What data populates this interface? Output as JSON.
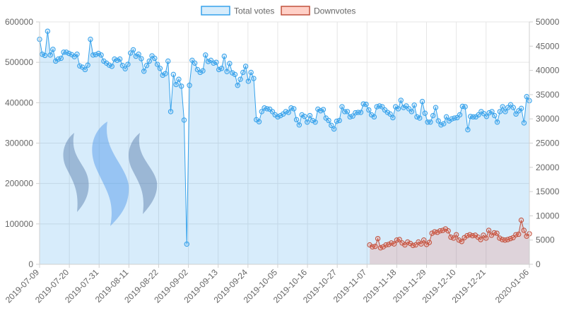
{
  "chart_data": {
    "type": "line",
    "legend_position": "top-center",
    "grid": true,
    "colors": {
      "total_line": "#36a2eb",
      "total_fill": "rgba(54,162,235,0.2)",
      "down_line": "#c0503c",
      "down_fill": "rgba(255,99,71,0.18)",
      "grid": "#e6e6e6",
      "logo_dark": "#5a6e99",
      "logo_light": "#4f95ea"
    },
    "logo_icon": "steem-logo-icon",
    "x_start": "2019-07-09",
    "x_end": "2020-01-06",
    "xticks": [
      "2019-07-09",
      "2019-07-20",
      "2019-07-31",
      "2019-08-11",
      "2019-08-22",
      "2019-09-02",
      "2019-09-13",
      "2019-09-24",
      "2019-10-05",
      "2019-10-16",
      "2019-10-27",
      "2019-11-07",
      "2019-11-18",
      "2019-11-29",
      "2019-12-10",
      "2019-12-21",
      "2020-01-06"
    ],
    "y_left": {
      "min": 0,
      "max": 600000,
      "ticks": [
        "0",
        "100000",
        "200000",
        "300000",
        "400000",
        "500000",
        "600000"
      ]
    },
    "y_right": {
      "min": 0,
      "max": 50000,
      "ticks": [
        "0",
        "5000",
        "10000",
        "15000",
        "20000",
        "25000",
        "30000",
        "35000",
        "40000",
        "45000",
        "50000"
      ]
    },
    "series": [
      {
        "name": "Total votes",
        "axis": "left",
        "start": "2019-07-09",
        "values": [
          557000,
          520000,
          517000,
          577000,
          518000,
          532000,
          503000,
          508000,
          510000,
          525000,
          525000,
          522000,
          519000,
          514000,
          520000,
          491000,
          488000,
          482000,
          493000,
          557000,
          518000,
          519000,
          522000,
          518000,
          503000,
          498000,
          493000,
          490000,
          508000,
          505000,
          508000,
          492000,
          484000,
          495000,
          523000,
          531000,
          515000,
          520000,
          509000,
          478000,
          492000,
          503000,
          516000,
          510000,
          495000,
          485000,
          468000,
          472000,
          503000,
          378000,
          470000,
          445000,
          458000,
          441000,
          357000,
          50000,
          443000,
          505000,
          498000,
          482000,
          475000,
          479000,
          518000,
          502000,
          505000,
          498000,
          500000,
          482000,
          485000,
          515000,
          477000,
          497000,
          474000,
          470000,
          443000,
          458000,
          475000,
          490000,
          453000,
          475000,
          460000,
          358000,
          353000,
          378000,
          387000,
          385000,
          384000,
          378000,
          370000,
          365000,
          368000,
          372000,
          378000,
          376000,
          387000,
          385000,
          358000,
          345000,
          370000,
          366000,
          352000,
          368000,
          356000,
          352000,
          384000,
          380000,
          383000,
          362000,
          356000,
          344000,
          335000,
          354000,
          356000,
          390000,
          378000,
          378000,
          365000,
          367000,
          375000,
          376000,
          376000,
          397000,
          396000,
          382000,
          370000,
          365000,
          390000,
          392000,
          390000,
          382000,
          376000,
          372000,
          363000,
          390000,
          385000,
          406000,
          388000,
          392000,
          385000,
          378000,
          394000,
          365000,
          362000,
          403000,
          374000,
          352000,
          352000,
          368000,
          388000,
          355000,
          345000,
          348000,
          365000,
          355000,
          360000,
          362000,
          363000,
          370000,
          391000,
          390000,
          333000,
          366000,
          365000,
          365000,
          370000,
          378000,
          373000,
          366000,
          375000,
          378000,
          368000,
          352000,
          378000,
          390000,
          378000,
          388000,
          395000,
          388000,
          372000,
          380000,
          386000,
          350000,
          415000,
          405000
        ]
      },
      {
        "name": "Downvotes",
        "axis": "right",
        "start": "2019-11-08",
        "values": [
          4000,
          3600,
          3700,
          5300,
          3400,
          3600,
          4000,
          4100,
          4400,
          4200,
          5000,
          5100,
          4400,
          4000,
          4600,
          4300,
          3900,
          4000,
          4600,
          4200,
          5000,
          4100,
          4500,
          6400,
          6700,
          6600,
          6900,
          7000,
          7300,
          6900,
          5600,
          5400,
          6100,
          5000,
          4700,
          5500,
          5900,
          6100,
          5900,
          6000,
          5600,
          5100,
          6000,
          5400,
          7000,
          6000,
          6500,
          6400,
          5400,
          5100,
          5000,
          5100,
          5300,
          5500,
          6100,
          6200,
          9100,
          7000,
          5800,
          6300
        ]
      }
    ]
  }
}
